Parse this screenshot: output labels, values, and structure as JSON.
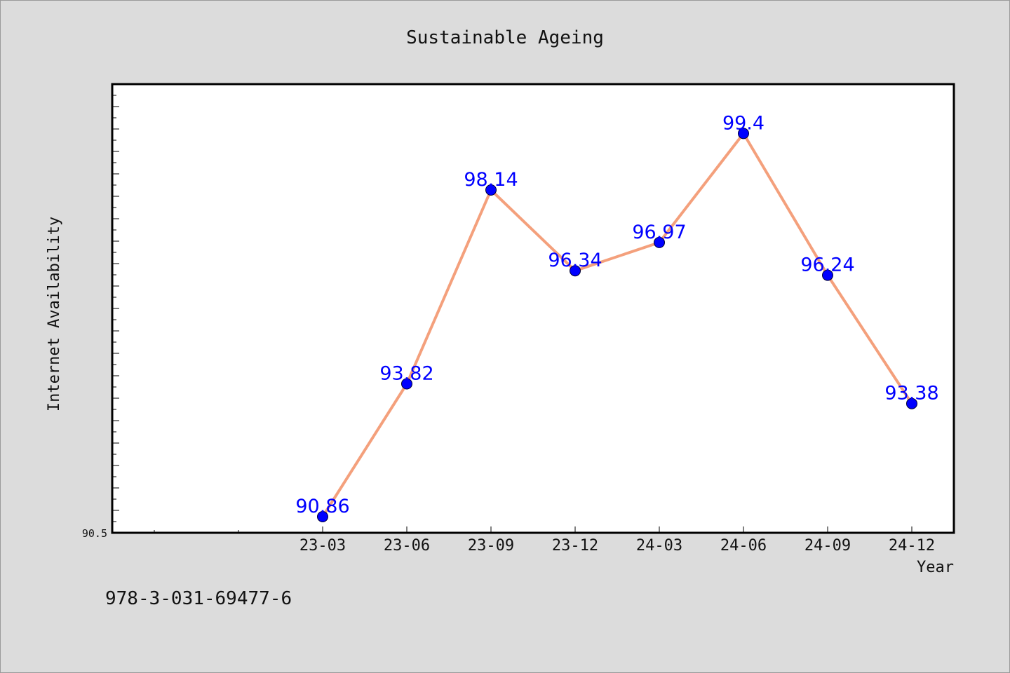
{
  "chart_data": {
    "type": "line",
    "title": "Sustainable Ageing",
    "xlabel": "Year",
    "ylabel": "Internet Availability",
    "categories": [
      "23-03",
      "23-06",
      "23-09",
      "23-12",
      "24-03",
      "24-06",
      "24-09",
      "24-12"
    ],
    "values": [
      90.86,
      93.82,
      98.14,
      96.34,
      96.97,
      99.4,
      96.24,
      93.38
    ],
    "value_labels": [
      "90.86",
      "93.82",
      "98.14",
      "96.34",
      "96.97",
      "99.4",
      "96.24",
      "93.38"
    ],
    "y_tick_labels": [
      "90.5"
    ],
    "ylim": [
      90.5,
      100.5
    ],
    "grid": false,
    "legend": "none",
    "line_color": "#f4a07c",
    "marker_color": "#0000ff"
  },
  "footer": {
    "isbn": "978-3-031-69477-6"
  }
}
